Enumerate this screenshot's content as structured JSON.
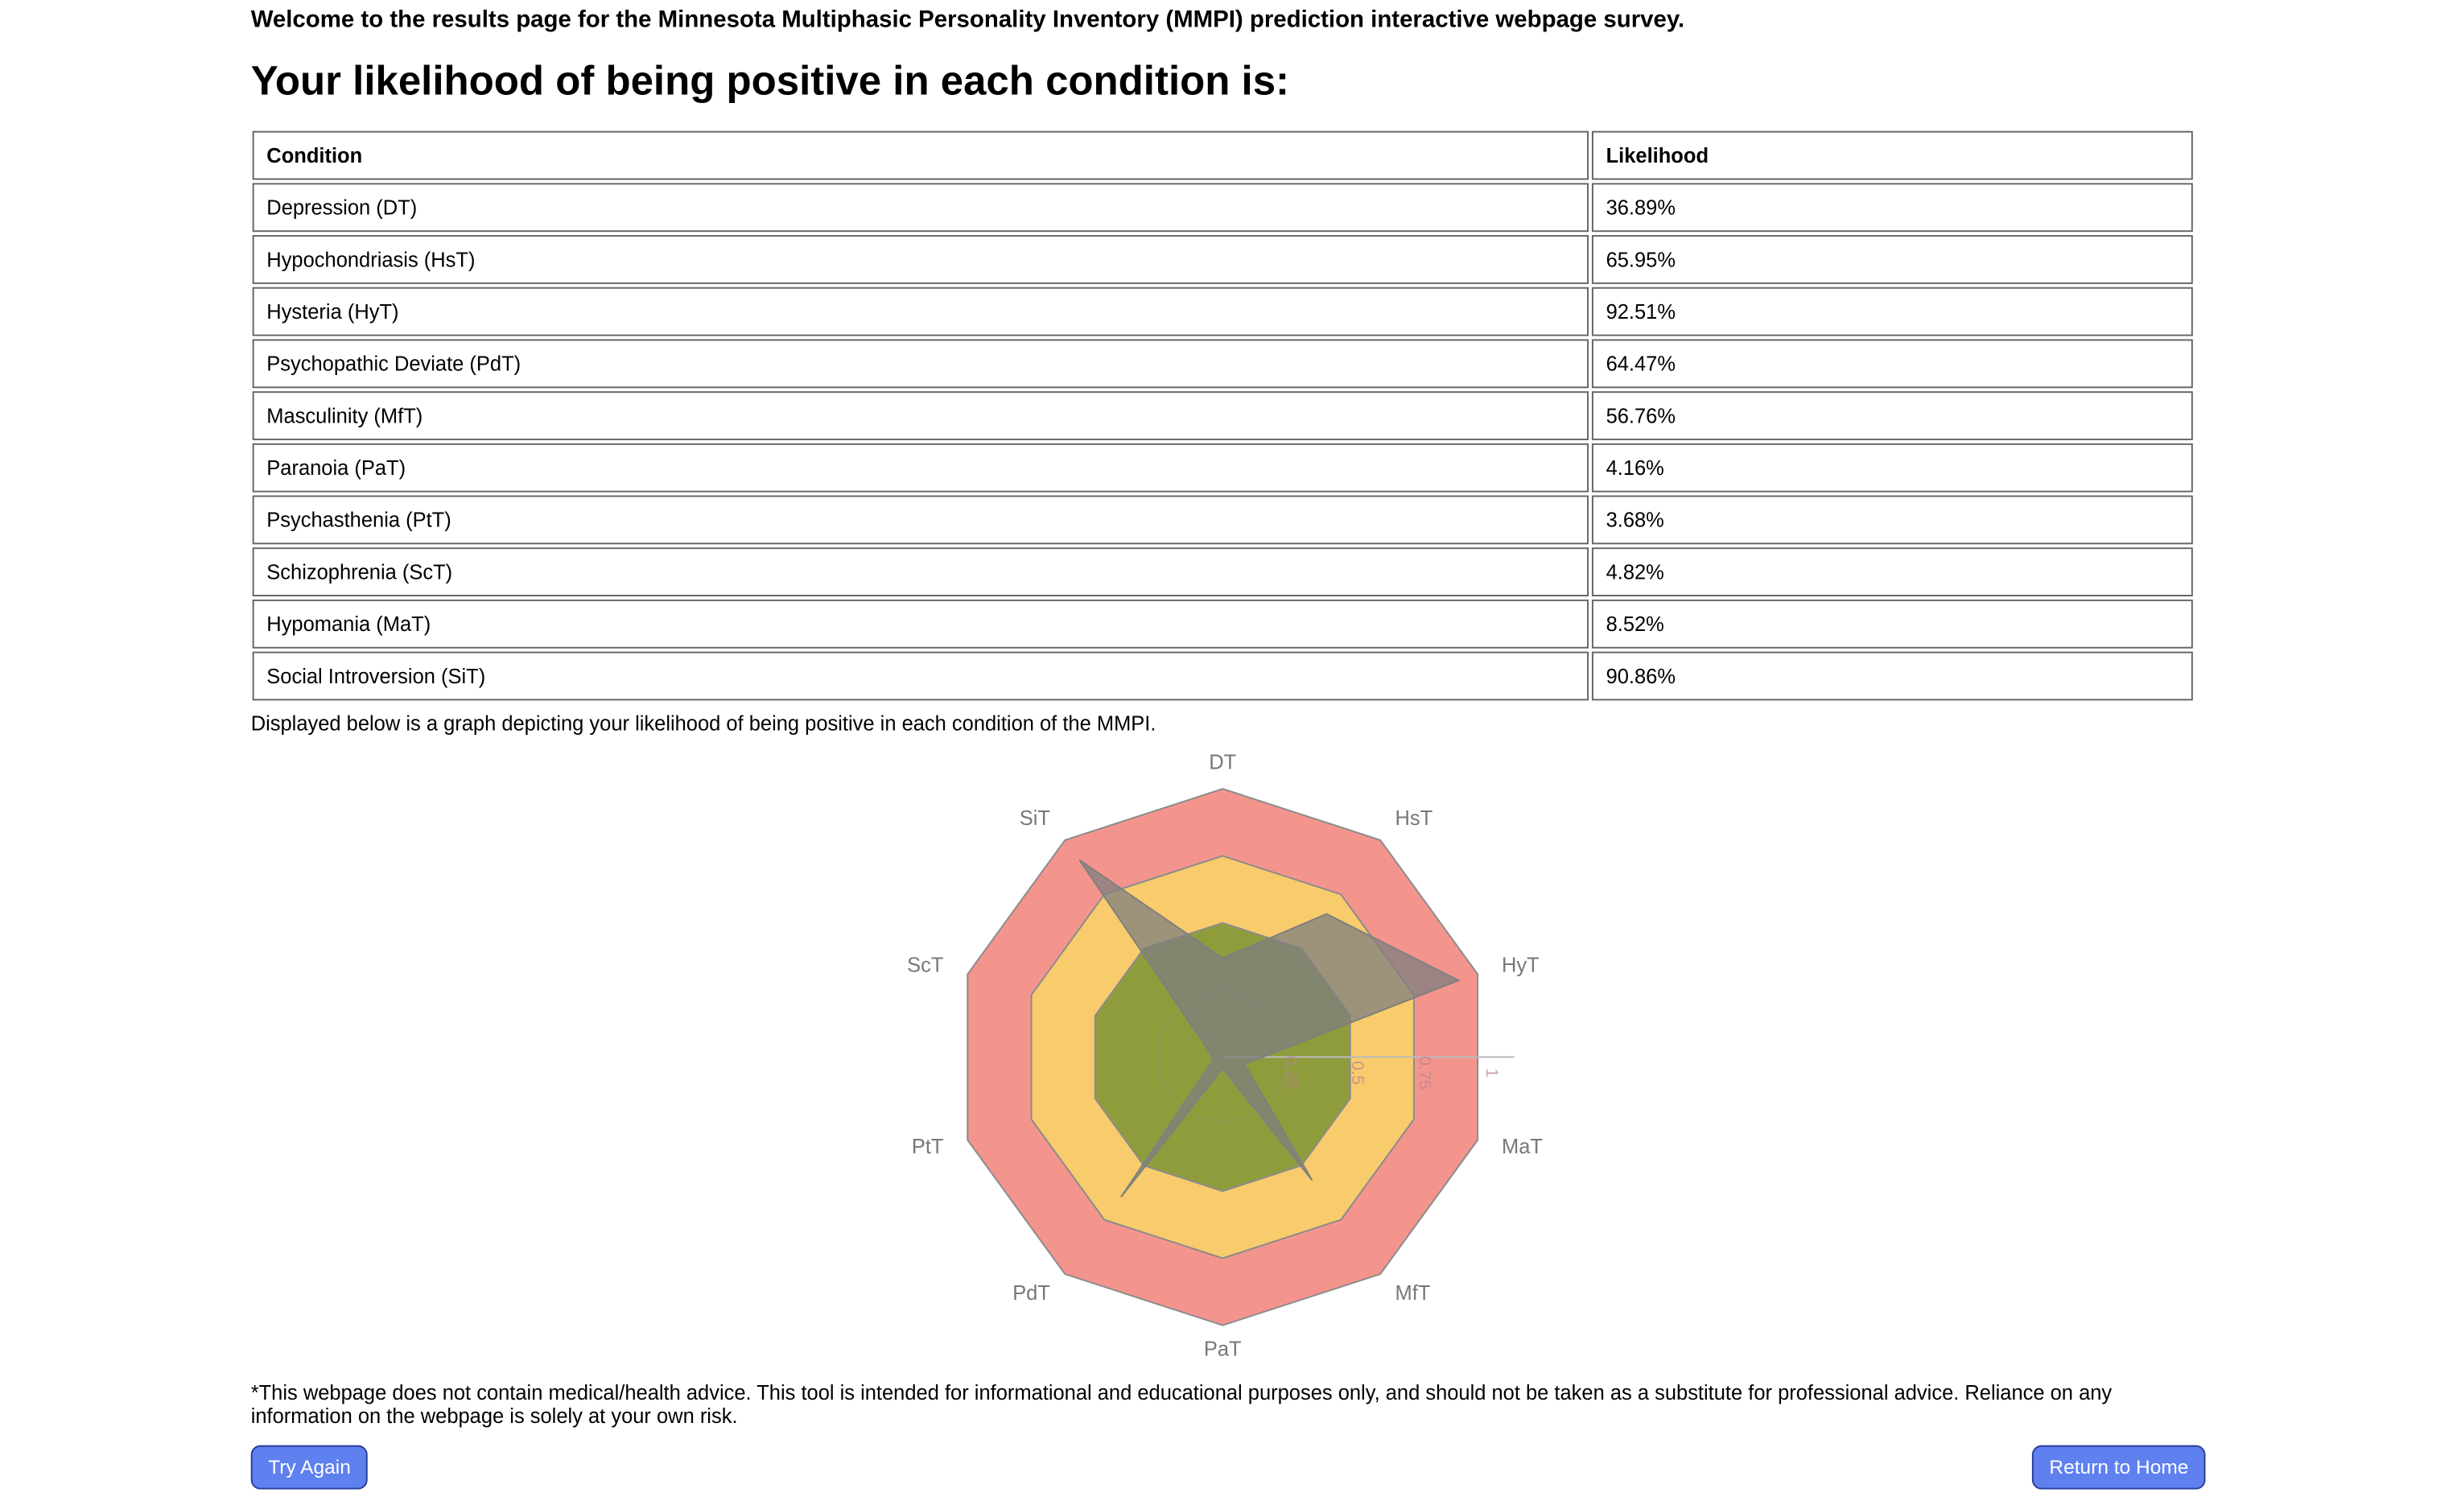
{
  "header": {
    "intro": "Welcome to the results page for the Minnesota Multiphasic Personality Inventory (MMPI) prediction interactive webpage survey.",
    "title": "Your likelihood of being positive in each condition is:"
  },
  "table": {
    "columns": [
      "Condition",
      "Likelihood"
    ],
    "rows": [
      [
        "Depression (DT)",
        "36.89%"
      ],
      [
        "Hypochondriasis (HsT)",
        "65.95%"
      ],
      [
        "Hysteria (HyT)",
        "92.51%"
      ],
      [
        "Psychopathic Deviate (PdT)",
        "64.47%"
      ],
      [
        "Masculinity (MfT)",
        "56.76%"
      ],
      [
        "Paranoia (PaT)",
        "4.16%"
      ],
      [
        "Psychasthenia (PtT)",
        "3.68%"
      ],
      [
        "Schizophrenia (ScT)",
        "4.82%"
      ],
      [
        "Hypomania (MaT)",
        "8.52%"
      ],
      [
        "Social Introversion (SiT)",
        "90.86%"
      ]
    ]
  },
  "caption": "Displayed below is a graph depicting your likelihood of being positive in each condition of the MMPI.",
  "chart_data": {
    "type": "radar",
    "categories": [
      "DT",
      "HsT",
      "HyT",
      "MaT",
      "MfT",
      "PaT",
      "PdT",
      "PtT",
      "ScT",
      "SiT"
    ],
    "values": [
      0.3689,
      0.6595,
      0.9251,
      0.0852,
      0.5676,
      0.0416,
      0.6447,
      0.0368,
      0.0482,
      0.9086
    ],
    "color": "#7f7f7f",
    "rlim": [
      0,
      1
    ],
    "rticks": [
      0.25,
      0.5,
      0.75,
      1
    ],
    "bands": [
      {
        "to": 1,
        "color": "#f4958d"
      },
      {
        "to": 0.75,
        "color": "#f8cb6c"
      },
      {
        "to": 0.5,
        "color": "#8f9c3c"
      }
    ]
  },
  "disclaimer": "*This webpage does not contain medical/health advice. This tool is intended for informational and educational purposes only, and should not be taken as a substitute for professional advice. Reliance on any information on the webpage is solely at your own risk.",
  "buttons": {
    "try_again": "Try Again",
    "home": "Return to Home"
  }
}
